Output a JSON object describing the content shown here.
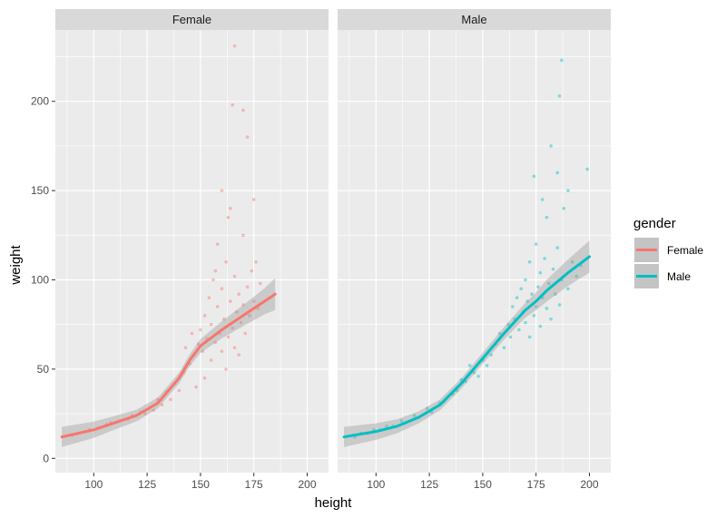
{
  "chart_data": {
    "type": "scatter",
    "xlabel": "height",
    "ylabel": "weight",
    "xlim": [
      82,
      210
    ],
    "ylim": [
      -8,
      240
    ],
    "x_ticks": [
      100,
      125,
      150,
      175,
      200
    ],
    "y_ticks": [
      0,
      50,
      100,
      150,
      200
    ],
    "grid": true,
    "legend": {
      "title": "gender",
      "position": "right",
      "entries": [
        "Female",
        "Male"
      ]
    },
    "colors": {
      "Female": "#F8766D",
      "Male": "#00BFC4",
      "panel_bg": "#EBEBEB",
      "strip_bg": "#D9D9D9",
      "ribbon": "#999999"
    },
    "panels": [
      {
        "label": "Female",
        "smooth_line": [
          [
            85,
            12
          ],
          [
            100,
            16
          ],
          [
            110,
            20
          ],
          [
            120,
            24
          ],
          [
            130,
            31
          ],
          [
            140,
            45
          ],
          [
            145,
            55
          ],
          [
            150,
            63
          ],
          [
            160,
            72
          ],
          [
            170,
            80
          ],
          [
            180,
            88
          ],
          [
            185,
            92
          ]
        ],
        "points": [
          [
            90,
            13
          ],
          [
            96,
            15
          ],
          [
            102,
            17
          ],
          [
            108,
            20
          ],
          [
            112,
            21
          ],
          [
            118,
            24
          ],
          [
            122,
            26
          ],
          [
            126,
            28
          ],
          [
            130,
            33
          ],
          [
            134,
            37
          ],
          [
            138,
            42
          ],
          [
            142,
            48
          ],
          [
            145,
            53
          ],
          [
            147,
            58
          ],
          [
            149,
            64
          ],
          [
            150,
            72
          ],
          [
            151,
            60
          ],
          [
            152,
            80
          ],
          [
            153,
            67
          ],
          [
            154,
            90
          ],
          [
            155,
            55
          ],
          [
            155,
            75
          ],
          [
            156,
            100
          ],
          [
            157,
            65
          ],
          [
            158,
            85
          ],
          [
            158,
            120
          ],
          [
            159,
            70
          ],
          [
            160,
            60
          ],
          [
            160,
            95
          ],
          [
            161,
            78
          ],
          [
            162,
            110
          ],
          [
            162,
            50
          ],
          [
            163,
            68
          ],
          [
            164,
            88
          ],
          [
            164,
            140
          ],
          [
            165,
            73
          ],
          [
            166,
            62
          ],
          [
            166,
            102
          ],
          [
            167,
            82
          ],
          [
            168,
            92
          ],
          [
            168,
            58
          ],
          [
            169,
            76
          ],
          [
            170,
            86
          ],
          [
            170,
            125
          ],
          [
            171,
            70
          ],
          [
            172,
            96
          ],
          [
            173,
            80
          ],
          [
            174,
            105
          ],
          [
            175,
            88
          ],
          [
            176,
            110
          ],
          [
            177,
            84
          ],
          [
            178,
            98
          ],
          [
            166,
            231
          ],
          [
            165,
            198
          ],
          [
            172,
            180
          ],
          [
            170,
            195
          ],
          [
            160,
            150
          ],
          [
            175,
            145
          ],
          [
            163,
            135
          ],
          [
            157,
            105
          ],
          [
            152,
            45
          ],
          [
            148,
            40
          ],
          [
            146,
            70
          ],
          [
            143,
            62
          ],
          [
            140,
            38
          ],
          [
            136,
            33
          ],
          [
            132,
            30
          ],
          [
            128,
            27
          ],
          [
            124,
            25
          ],
          [
            116,
            22
          ],
          [
            106,
            19
          ],
          [
            98,
            16
          ]
        ]
      },
      {
        "label": "Male",
        "smooth_line": [
          [
            85,
            12
          ],
          [
            100,
            15
          ],
          [
            110,
            18
          ],
          [
            120,
            23
          ],
          [
            130,
            30
          ],
          [
            140,
            42
          ],
          [
            150,
            56
          ],
          [
            160,
            70
          ],
          [
            170,
            83
          ],
          [
            175,
            88
          ],
          [
            180,
            94
          ],
          [
            190,
            104
          ],
          [
            200,
            113
          ]
        ],
        "points": [
          [
            90,
            12
          ],
          [
            96,
            14
          ],
          [
            102,
            16
          ],
          [
            108,
            18
          ],
          [
            114,
            20
          ],
          [
            120,
            23
          ],
          [
            126,
            26
          ],
          [
            132,
            32
          ],
          [
            138,
            38
          ],
          [
            142,
            43
          ],
          [
            146,
            48
          ],
          [
            150,
            55
          ],
          [
            154,
            58
          ],
          [
            156,
            64
          ],
          [
            158,
            70
          ],
          [
            160,
            62
          ],
          [
            162,
            75
          ],
          [
            163,
            68
          ],
          [
            164,
            85
          ],
          [
            165,
            78
          ],
          [
            166,
            90
          ],
          [
            167,
            72
          ],
          [
            168,
            95
          ],
          [
            169,
            82
          ],
          [
            170,
            100
          ],
          [
            170,
            76
          ],
          [
            171,
            88
          ],
          [
            172,
            110
          ],
          [
            172,
            68
          ],
          [
            173,
            92
          ],
          [
            174,
            80
          ],
          [
            175,
            120
          ],
          [
            175,
            85
          ],
          [
            176,
            96
          ],
          [
            177,
            104
          ],
          [
            177,
            74
          ],
          [
            178,
            90
          ],
          [
            179,
            112
          ],
          [
            180,
            84
          ],
          [
            180,
            135
          ],
          [
            181,
            98
          ],
          [
            182,
            78
          ],
          [
            183,
            106
          ],
          [
            184,
            92
          ],
          [
            185,
            118
          ],
          [
            186,
            86
          ],
          [
            187,
            100
          ],
          [
            188,
            140
          ],
          [
            190,
            95
          ],
          [
            192,
            110
          ],
          [
            194,
            102
          ],
          [
            196,
            108
          ],
          [
            187,
            223
          ],
          [
            186,
            203
          ],
          [
            182,
            175
          ],
          [
            185,
            160
          ],
          [
            190,
            150
          ],
          [
            178,
            145
          ],
          [
            199,
            162
          ],
          [
            174,
            158
          ],
          [
            152,
            52
          ],
          [
            148,
            46
          ],
          [
            144,
            52
          ],
          [
            140,
            44
          ],
          [
            136,
            36
          ],
          [
            130,
            31
          ],
          [
            124,
            28
          ],
          [
            118,
            24
          ],
          [
            112,
            21
          ],
          [
            105,
            18
          ],
          [
            99,
            16
          ],
          [
            93,
            14
          ]
        ]
      }
    ]
  }
}
